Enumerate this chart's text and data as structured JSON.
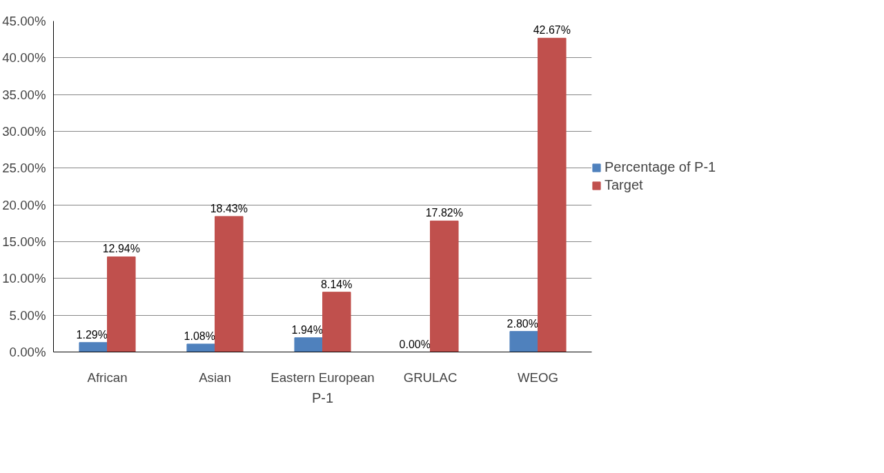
{
  "chart_data": {
    "type": "bar",
    "xlabel": "P-1",
    "categories": [
      "African",
      "Asian",
      "Eastern European",
      "GRULAC",
      "WEOG"
    ],
    "series": [
      {
        "name": "Percentage of P-1",
        "color": "#4f81bd",
        "values": [
          1.29,
          1.08,
          1.94,
          0.0,
          2.8
        ],
        "value_labels": [
          "1.29%",
          "1.08%",
          "1.94%",
          "0.00%",
          "2.80%"
        ]
      },
      {
        "name": "Target",
        "color": "#c0504d",
        "values": [
          12.94,
          18.43,
          8.14,
          17.82,
          42.67
        ],
        "value_labels": [
          "12.94%",
          "18.43%",
          "8.14%",
          "17.82%",
          "42.67%"
        ]
      }
    ],
    "ylim": [
      0,
      45
    ],
    "yticks": [
      {
        "value": 0,
        "label": "0.00%"
      },
      {
        "value": 5,
        "label": "5.00%"
      },
      {
        "value": 10,
        "label": "10.00%"
      },
      {
        "value": 15,
        "label": "15.00%"
      },
      {
        "value": 20,
        "label": "20.00%"
      },
      {
        "value": 25,
        "label": "25.00%"
      },
      {
        "value": 30,
        "label": "30.00%"
      },
      {
        "value": 35,
        "label": "35.00%"
      },
      {
        "value": 40,
        "label": "40.00%"
      },
      {
        "value": 45,
        "label": "45.00%"
      }
    ],
    "grid": "y",
    "legend": "right"
  }
}
